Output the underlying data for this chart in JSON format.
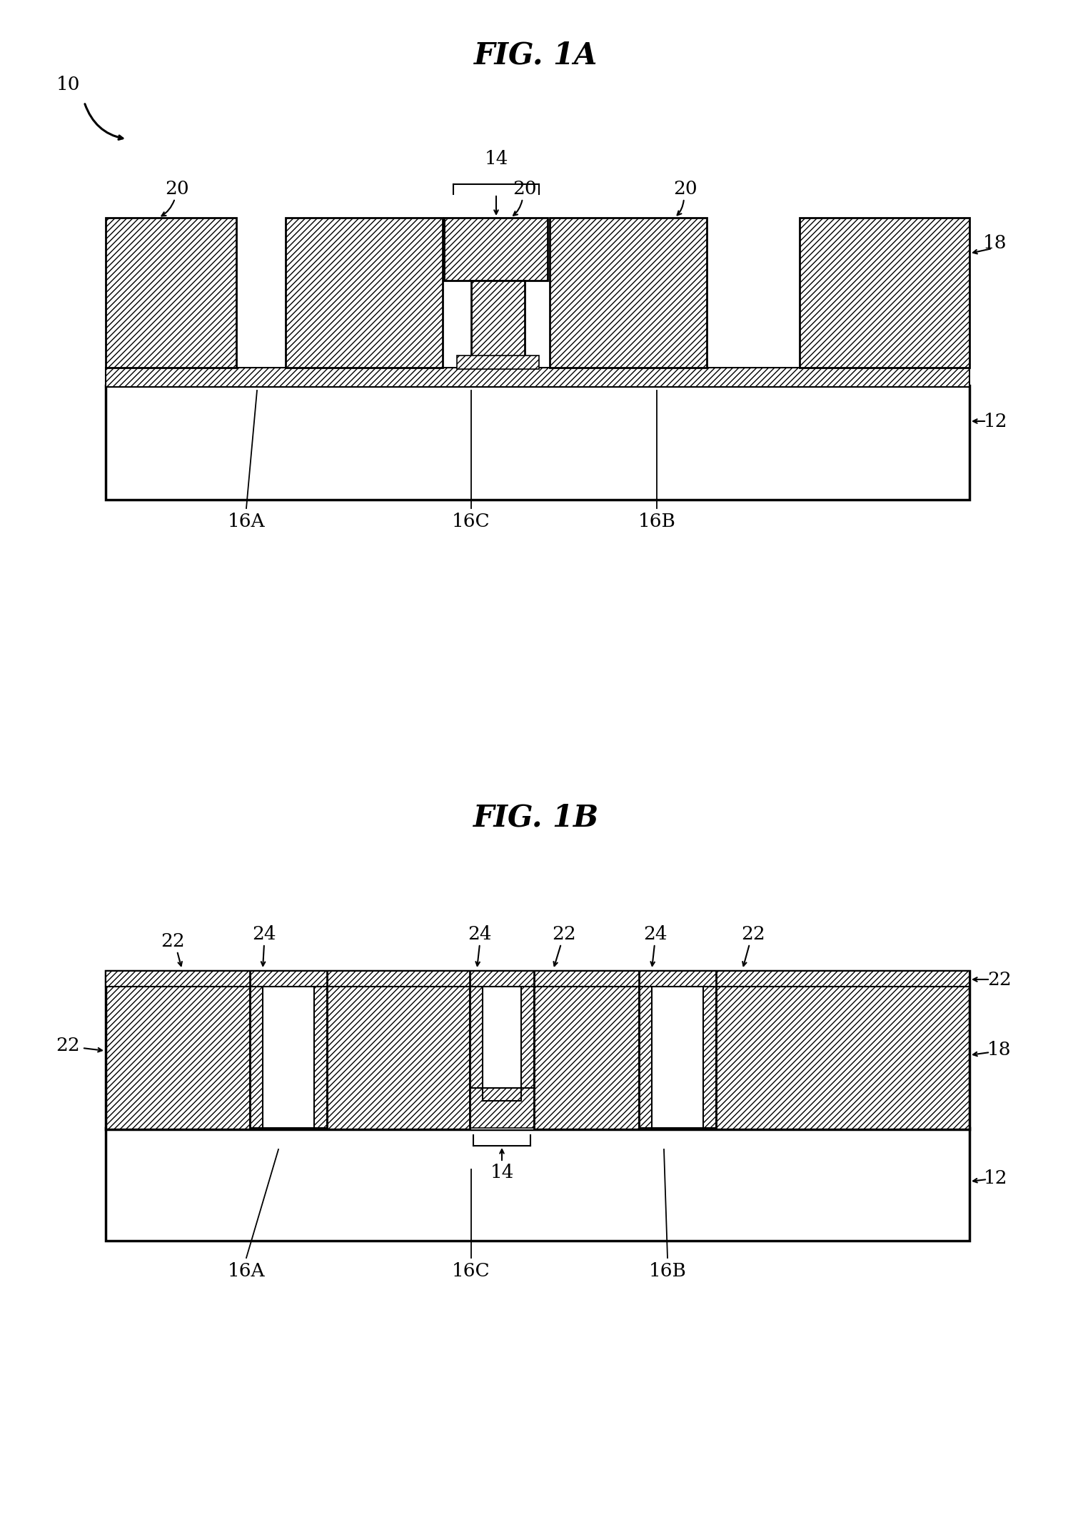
{
  "fig_title_1a": "FIG. 1A",
  "fig_title_1b": "FIG. 1B",
  "bg_color": "#ffffff",
  "font_size_title": 30,
  "font_size_label": 19,
  "label_10": "10",
  "label_12": "12",
  "label_14": "14",
  "label_16a": "16A",
  "label_16b": "16B",
  "label_16c": "16C",
  "label_18": "18",
  "label_20": "20",
  "label_22": "22",
  "label_24": "24"
}
